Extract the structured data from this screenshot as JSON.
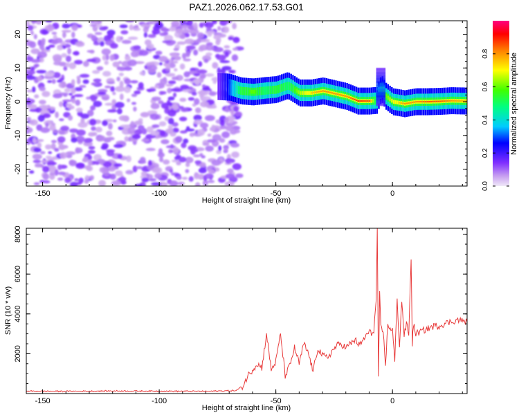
{
  "title": "PAZ1.2026.062.17.53.G01",
  "chart_data": [
    {
      "type": "heatmap",
      "xlabel": "Height of straight line (km)",
      "ylabel": "Frequency (Hz)",
      "xlim": [
        -157,
        32
      ],
      "ylim": [
        -25,
        24
      ],
      "xticks": [
        -150,
        -100,
        -50,
        0
      ],
      "yticks": [
        -20,
        -10,
        0,
        10,
        20
      ],
      "noise_region": [
        -157,
        -65
      ],
      "signal_ridge": {
        "x": [
          -75,
          -70,
          -65,
          -60,
          -55,
          -50,
          -45,
          -40,
          -35,
          -30,
          -25,
          -20,
          -15,
          -10,
          -7,
          -5,
          -3,
          0,
          5,
          10,
          15,
          20,
          25,
          32
        ],
        "freq": [
          4.5,
          4.3,
          3.2,
          2.9,
          3.3,
          3.6,
          4.8,
          2.6,
          2.6,
          3.2,
          2.4,
          1.6,
          0.2,
          0.2,
          0.4,
          4.0,
          1.6,
          0.0,
          -0.6,
          0.0,
          0.0,
          0.1,
          0.3,
          0.2
        ],
        "amp": [
          0.15,
          0.3,
          0.55,
          0.6,
          0.5,
          0.55,
          0.5,
          0.65,
          0.75,
          0.8,
          0.8,
          0.8,
          0.9,
          0.85,
          0.4,
          0.5,
          0.6,
          0.7,
          0.8,
          0.8,
          0.85,
          0.85,
          0.8,
          0.75
        ]
      }
    },
    {
      "type": "colorbar",
      "label": "Normalized spectral amplitude",
      "range": [
        0,
        1
      ],
      "ticks": [
        "0.0",
        "0.2",
        "0.4",
        "0.6",
        "0.8"
      ]
    },
    {
      "type": "line",
      "xlabel": "Height of straight line (km)",
      "ylabel": "SNR (10 * v/v)",
      "xlim": [
        -157,
        32
      ],
      "ylim": [
        0,
        8300
      ],
      "xticks": [
        -150,
        -100,
        -50,
        0
      ],
      "yticks": [
        2000,
        4000,
        6000,
        8000
      ],
      "color": "#e83a3a",
      "series": {
        "x": [
          -157,
          -140,
          -120,
          -100,
          -80,
          -67,
          -64,
          -62,
          -60,
          -58,
          -56,
          -54,
          -52,
          -50,
          -48,
          -46,
          -44,
          -42,
          -40,
          -38,
          -36,
          -34,
          -32,
          -30,
          -28,
          -26,
          -24,
          -22,
          -20,
          -18,
          -16,
          -14,
          -12,
          -10,
          -9,
          -8,
          -7,
          -6.5,
          -6,
          -5.5,
          -5,
          -4,
          -3,
          -2,
          0,
          1,
          2,
          3,
          4,
          5,
          6,
          7,
          8,
          8.5,
          9,
          10,
          12,
          14,
          16,
          18,
          20,
          22,
          25,
          28,
          32
        ],
        "y": [
          120,
          110,
          130,
          120,
          110,
          150,
          400,
          900,
          1200,
          1500,
          1300,
          3000,
          1200,
          1600,
          3000,
          900,
          1400,
          2300,
          1500,
          2500,
          2000,
          1100,
          2300,
          1900,
          1800,
          2100,
          2400,
          2500,
          2300,
          2500,
          2700,
          2400,
          2800,
          3100,
          3000,
          3200,
          4600,
          8300,
          700,
          5000,
          3300,
          3100,
          1500,
          3400,
          3200,
          1600,
          4800,
          2400,
          4700,
          2900,
          3500,
          3000,
          6800,
          2500,
          3500,
          3000,
          3100,
          3200,
          3300,
          3400,
          3400,
          3500,
          3600,
          3700,
          3600
        ]
      }
    }
  ]
}
